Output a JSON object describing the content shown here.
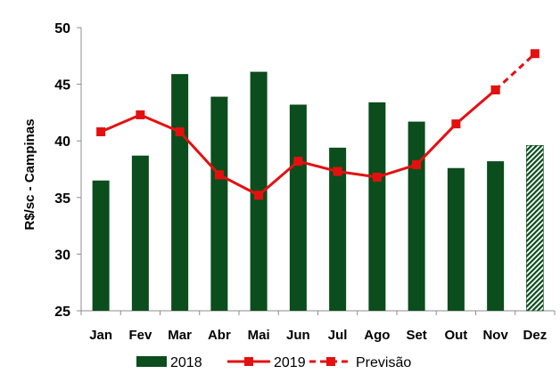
{
  "chart_data": {
    "type": "bar",
    "title": "",
    "xlabel": "",
    "ylabel": "R$/sc - Campinas",
    "ylim": [
      25,
      50
    ],
    "yticks": [
      25,
      30,
      35,
      40,
      45,
      50
    ],
    "grid": false,
    "legend_position": "bottom",
    "categories": [
      "Jan",
      "Fev",
      "Mar",
      "Abr",
      "Mai",
      "Jun",
      "Jul",
      "Ago",
      "Set",
      "Out",
      "Nov",
      "Dez"
    ],
    "series": [
      {
        "name": "2018",
        "kind": "bar",
        "color": "#0b4d1c",
        "values": [
          36.5,
          38.7,
          45.9,
          43.9,
          46.1,
          43.2,
          39.4,
          43.4,
          41.7,
          37.6,
          38.2,
          39.6
        ],
        "hatched_categories": [
          "Dez"
        ]
      },
      {
        "name": "2019",
        "kind": "line",
        "color": "#e41010",
        "marker": "square",
        "values": [
          40.8,
          42.3,
          40.8,
          37.0,
          35.2,
          38.2,
          37.3,
          36.8,
          37.9,
          41.5,
          44.5,
          null
        ]
      },
      {
        "name": "Previsão",
        "kind": "line",
        "style": "dashed",
        "color": "#e41010",
        "marker": "square",
        "values": [
          null,
          null,
          null,
          null,
          null,
          null,
          null,
          null,
          null,
          null,
          44.5,
          47.7
        ]
      }
    ]
  }
}
